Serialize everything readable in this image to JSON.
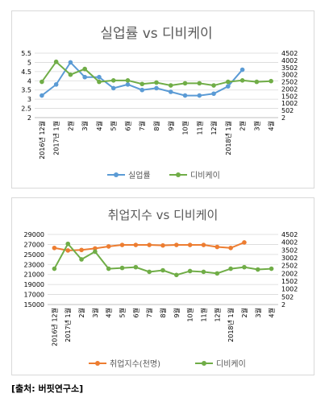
{
  "source_note": "[출처: 버핏연구소]",
  "colors": {
    "blue": "#5b9bd5",
    "green": "#70ad47",
    "orange": "#ed7d31",
    "grid": "#d9d9d9",
    "axis_text": "#595959"
  },
  "chart_data": [
    {
      "type": "line",
      "title": "실업률 vs 디비케이",
      "categories": [
        "2016년 12월",
        "2017년 1월",
        "2월",
        "3월",
        "4월",
        "5월",
        "6월",
        "7월",
        "8월",
        "9월",
        "10월",
        "11월",
        "12월",
        "2018년 1월",
        "2월",
        "3월",
        "4월"
      ],
      "left_axis": {
        "ylim": [
          2,
          5.5
        ],
        "ticks": [
          "2",
          "2.5",
          "3",
          "3.5",
          "4",
          "4.5",
          "5",
          "5.5"
        ]
      },
      "right_axis": {
        "ylim": [
          2,
          4502
        ],
        "ticks": [
          "2",
          "502",
          "1002",
          "1502",
          "2002",
          "2502",
          "3002",
          "3502",
          "4002",
          "4502"
        ]
      },
      "grid": true,
      "legend_position": "bottom",
      "series": [
        {
          "name": "실업률",
          "axis": "left",
          "color": "#5b9bd5",
          "values": [
            3.2,
            3.8,
            5.0,
            4.2,
            4.2,
            3.6,
            3.8,
            3.5,
            3.6,
            3.4,
            3.2,
            3.2,
            3.3,
            3.7,
            4.6,
            null,
            null
          ]
        },
        {
          "name": "디비케이",
          "axis": "right",
          "color": "#70ad47",
          "values": [
            2502,
            3900,
            3000,
            3400,
            2500,
            2600,
            2600,
            2350,
            2450,
            2250,
            2400,
            2400,
            2250,
            2500,
            2600,
            2500,
            2550
          ]
        }
      ]
    },
    {
      "type": "line",
      "title": "취업지수 vs 디비케이",
      "categories": [
        "2016년 12월",
        "2017년 1월",
        "2월",
        "3월",
        "4월",
        "5월",
        "6월",
        "7월",
        "8월",
        "9월",
        "10월",
        "11월",
        "12월",
        "2018년 1월",
        "2월",
        "3월",
        "4월"
      ],
      "left_axis": {
        "ylim": [
          15000,
          29000
        ],
        "ticks": [
          "15000",
          "17000",
          "19000",
          "21000",
          "23000",
          "25000",
          "27000",
          "29000"
        ]
      },
      "right_axis": {
        "ylim": [
          2,
          4502
        ],
        "ticks": [
          "2",
          "502",
          "1002",
          "1502",
          "2002",
          "2502",
          "3002",
          "3502",
          "4002",
          "4502"
        ]
      },
      "grid": true,
      "legend_position": "bottom",
      "series": [
        {
          "name": "취업지수(천명)",
          "axis": "left",
          "color": "#ed7d31",
          "values": [
            26300,
            25800,
            25900,
            26200,
            26600,
            26900,
            26900,
            26900,
            26800,
            26900,
            26900,
            26900,
            26500,
            26300,
            27400,
            null,
            null
          ]
        },
        {
          "name": "디비케이",
          "axis": "right",
          "color": "#70ad47",
          "values": [
            2300,
            3900,
            2900,
            3400,
            2300,
            2350,
            2400,
            2100,
            2200,
            1900,
            2150,
            2100,
            2000,
            2300,
            2400,
            2250,
            2300
          ]
        }
      ]
    }
  ]
}
